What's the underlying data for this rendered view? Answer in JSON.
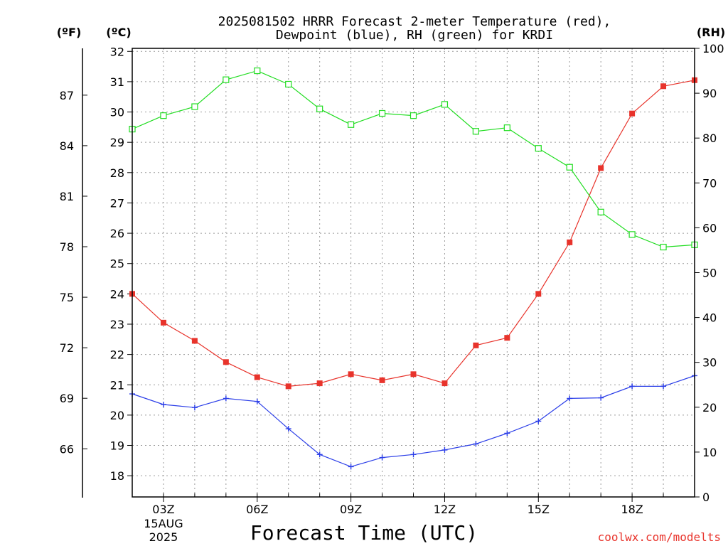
{
  "chart_data": {
    "type": "line",
    "title_lines": [
      "2025081502 HRRR Forecast 2-meter Temperature (red),",
      "Dewpoint (blue), RH (green) for KRDI"
    ],
    "xlabel": "Forecast Time (UTC)",
    "credit": "coolwx.com/modelts",
    "units": {
      "f": "(ºF)",
      "c": "(ºC)",
      "rh": "(RH)"
    },
    "x_hours": [
      2,
      3,
      4,
      5,
      6,
      7,
      8,
      9,
      10,
      11,
      12,
      13,
      14,
      15,
      16,
      17,
      18,
      19,
      20
    ],
    "x_ticks": [
      {
        "hour": 3,
        "label": "03Z",
        "sub": [
          "15AUG",
          "2025"
        ]
      },
      {
        "hour": 6,
        "label": "06Z"
      },
      {
        "hour": 9,
        "label": "09Z"
      },
      {
        "hour": 12,
        "label": "12Z"
      },
      {
        "hour": 15,
        "label": "15Z"
      },
      {
        "hour": 18,
        "label": "18Z"
      }
    ],
    "xlim": [
      2,
      20
    ],
    "y_celsius": {
      "lim": [
        17.3,
        32.1
      ],
      "ticks": [
        18,
        19,
        20,
        21,
        22,
        23,
        24,
        25,
        26,
        27,
        28,
        29,
        30,
        31,
        32
      ]
    },
    "y_fahrenheit": {
      "ticks": [
        66,
        69,
        72,
        75,
        78,
        81,
        84,
        87
      ]
    },
    "y_rh": {
      "lim": [
        0,
        100
      ],
      "ticks": [
        0,
        10,
        20,
        30,
        40,
        50,
        60,
        70,
        80,
        90,
        100
      ]
    },
    "grid": true,
    "series": [
      {
        "name": "Temperature",
        "axis": "c",
        "color": "#e8332b",
        "marker": "filled-square",
        "values": [
          24.0,
          23.05,
          22.45,
          21.75,
          21.25,
          20.95,
          21.05,
          21.35,
          21.15,
          21.35,
          21.05,
          22.3,
          22.55,
          24.0,
          25.7,
          28.15,
          29.95,
          30.85,
          31.05
        ]
      },
      {
        "name": "Dewpoint",
        "axis": "c",
        "color": "#2b3ee8",
        "marker": "plus",
        "values": [
          20.7,
          20.35,
          20.25,
          20.55,
          20.45,
          19.55,
          18.7,
          18.3,
          18.6,
          18.7,
          18.85,
          19.05,
          19.4,
          19.8,
          20.55,
          20.57,
          20.95,
          20.95,
          21.3
        ]
      },
      {
        "name": "RH",
        "axis": "rh",
        "color": "#22dd22",
        "marker": "open-square",
        "values": [
          82,
          85,
          87,
          93,
          95,
          92,
          86.5,
          83,
          85.5,
          85,
          87.5,
          81.5,
          82.3,
          77.7,
          73.5,
          63.5,
          58.5,
          55.7,
          56.2
        ]
      }
    ]
  }
}
